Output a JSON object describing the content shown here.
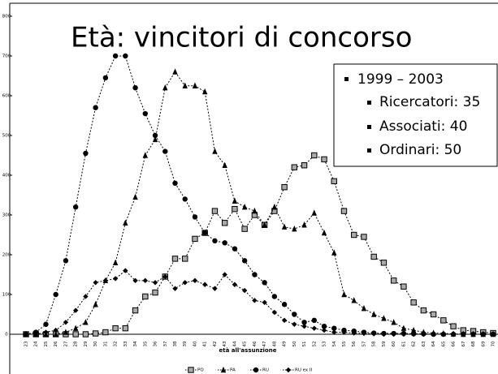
{
  "chart_data": {
    "type": "line",
    "title": "Età: vincitori di concorso",
    "legend_box": [
      "1999 – 2003",
      "Ricercatori: 35",
      "Associati: 40",
      "Ordinari: 50"
    ],
    "x_label": "età all'assunzione",
    "categories": [
      "23",
      "24",
      "25",
      "26",
      "27",
      "28",
      "29",
      "30",
      "31",
      "32",
      "33",
      "34",
      "35",
      "36",
      "37",
      "38",
      "39",
      "40",
      "41",
      "42",
      "43",
      "44",
      "45",
      "46",
      "47",
      "48",
      "49",
      "50",
      "51",
      "52",
      "53",
      "54",
      "55",
      "56",
      "57",
      "58",
      "59",
      "60",
      "61",
      "62",
      "63",
      "64",
      "65",
      "66",
      "67",
      "68",
      "69",
      "70"
    ],
    "ylim": [
      0,
      800
    ],
    "yticks": [
      0,
      100,
      200,
      300,
      400,
      500,
      600,
      700,
      800
    ],
    "series": [
      {
        "name": "PO",
        "color": "#000000",
        "marker": "square",
        "values": [
          0,
          0,
          0,
          0,
          0,
          0,
          0,
          2,
          5,
          15,
          15,
          60,
          95,
          105,
          145,
          190,
          190,
          240,
          255,
          310,
          280,
          315,
          265,
          300,
          275,
          310,
          370,
          420,
          425,
          450,
          440,
          385,
          310,
          250,
          245,
          195,
          180,
          135,
          120,
          80,
          60,
          50,
          35,
          20,
          10,
          8,
          5,
          3
        ]
      },
      {
        "name": "PA",
        "color": "#000000",
        "marker": "triangle",
        "values": [
          0,
          0,
          0,
          0,
          5,
          15,
          30,
          75,
          135,
          180,
          280,
          345,
          450,
          490,
          620,
          660,
          625,
          625,
          610,
          460,
          425,
          335,
          320,
          310,
          275,
          320,
          270,
          265,
          275,
          305,
          255,
          205,
          100,
          85,
          65,
          50,
          40,
          30,
          15,
          10,
          5,
          3,
          2,
          1,
          0,
          0,
          0,
          0
        ]
      },
      {
        "name": "RU",
        "color": "#000000",
        "marker": "circle",
        "values": [
          0,
          5,
          25,
          100,
          185,
          320,
          455,
          570,
          645,
          700,
          700,
          620,
          555,
          500,
          460,
          380,
          340,
          295,
          255,
          235,
          230,
          215,
          185,
          150,
          130,
          95,
          75,
          50,
          30,
          35,
          20,
          15,
          10,
          8,
          5,
          3,
          2,
          2,
          2,
          1,
          1,
          0,
          0,
          0,
          0,
          0,
          0,
          0
        ]
      },
      {
        "name": "RU ex II",
        "color": "#000000",
        "marker": "diamond",
        "values": [
          0,
          0,
          5,
          10,
          30,
          60,
          95,
          130,
          135,
          140,
          160,
          135,
          135,
          130,
          145,
          115,
          130,
          135,
          125,
          115,
          150,
          125,
          110,
          85,
          80,
          55,
          35,
          25,
          20,
          15,
          10,
          5,
          5,
          3,
          2,
          1,
          0,
          0,
          0,
          0,
          0,
          0,
          0,
          0,
          0,
          0,
          0,
          0
        ]
      }
    ]
  }
}
